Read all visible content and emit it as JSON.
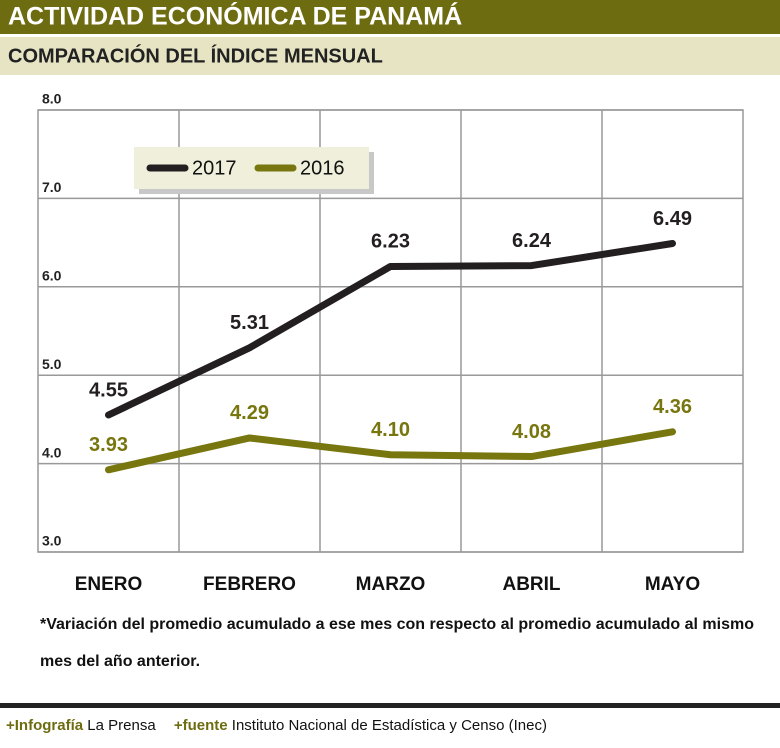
{
  "chart_data": {
    "type": "line",
    "title": "ACTIVIDAD ECONÓMICA DE PANAMÁ",
    "subtitle": "COMPARACIÓN DEL ÍNDICE MENSUAL",
    "categories": [
      "ENERO",
      "FEBRERO",
      "MARZO",
      "ABRIL",
      "MAYO"
    ],
    "series": [
      {
        "name": "2017",
        "color": "#231f20",
        "values": [
          4.55,
          5.31,
          6.23,
          6.24,
          6.49
        ],
        "value_labels": [
          "4.55",
          "5.31",
          "6.23",
          "6.24",
          "6.49"
        ]
      },
      {
        "name": "2016",
        "color": "#77760f",
        "values": [
          3.93,
          4.29,
          4.1,
          4.08,
          4.36
        ],
        "value_labels": [
          "3.93",
          "4.29",
          "4.10",
          "4.08",
          "4.36"
        ]
      }
    ],
    "ylim": [
      3,
      8
    ],
    "yticks": [
      {
        "value": 3,
        "label": "3.0"
      },
      {
        "value": 4,
        "label": "4.0"
      },
      {
        "value": 5,
        "label": "5.0"
      },
      {
        "value": 6,
        "label": "6.0"
      },
      {
        "value": 7,
        "label": "7.0"
      },
      {
        "value": 8,
        "label": "8.0"
      }
    ],
    "grid": true,
    "note": [
      "*Variación del promedio acumulado a ese mes con respecto al promedio acumulado al mismo",
      "mes del año anterior."
    ]
  },
  "footer": {
    "credit_label": "+Infografía",
    "credit": "La Prensa",
    "source_label": "+fuente",
    "source": "Instituto Nacional de Estadística y Censo (Inec)"
  }
}
